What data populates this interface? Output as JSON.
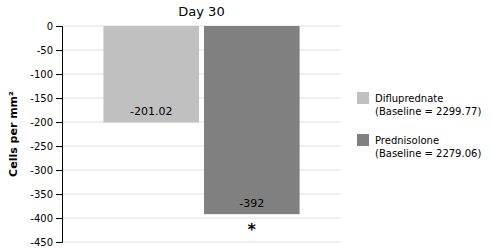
{
  "chart_data": {
    "type": "bar",
    "title": "Day 30",
    "categories": [
      null
    ],
    "series": [
      {
        "name": "Difluprednate\n(Baseline = 2299.77)",
        "color": "#c0c0c0",
        "values": [
          -201.02
        ]
      },
      {
        "name": "Prednisolone\n(Baseline = 2279.06)",
        "color": "#808080",
        "values": [
          -392
        ]
      }
    ],
    "ylabel": "Cells per mm²",
    "ylim": [
      -450,
      0
    ],
    "yticks": [
      0,
      -50,
      -100,
      -150,
      -200,
      -250,
      -300,
      -350,
      -400,
      -450
    ],
    "grid": true,
    "data_labels": true,
    "legend": "right",
    "annotations": [
      {
        "text": "*",
        "series": 1
      }
    ]
  }
}
